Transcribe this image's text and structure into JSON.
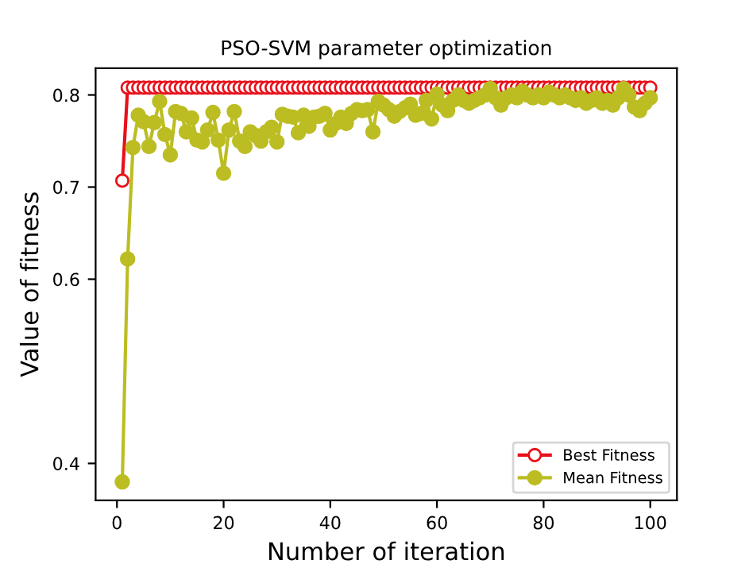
{
  "chart_data": {
    "type": "line",
    "title": "PSO-SVM parameter optimization",
    "xlabel": "Number of iteration",
    "ylabel": "Value of fitness",
    "x": [
      1,
      2,
      3,
      4,
      5,
      6,
      7,
      8,
      9,
      10,
      11,
      12,
      13,
      14,
      15,
      16,
      17,
      18,
      19,
      20,
      21,
      22,
      23,
      24,
      25,
      26,
      27,
      28,
      29,
      30,
      31,
      32,
      33,
      34,
      35,
      36,
      37,
      38,
      39,
      40,
      41,
      42,
      43,
      44,
      45,
      46,
      47,
      48,
      49,
      50,
      51,
      52,
      53,
      54,
      55,
      56,
      57,
      58,
      59,
      60,
      61,
      62,
      63,
      64,
      65,
      66,
      67,
      68,
      69,
      70,
      71,
      72,
      73,
      74,
      75,
      76,
      77,
      78,
      79,
      80,
      81,
      82,
      83,
      84,
      85,
      86,
      87,
      88,
      89,
      90,
      91,
      92,
      93,
      94,
      95,
      96,
      97,
      98,
      99,
      100
    ],
    "series": [
      {
        "name": "Best Fitness",
        "color": "#e8101a",
        "marker": "open circle",
        "values": [
          0.707,
          0.808,
          0.808,
          0.808,
          0.808,
          0.808,
          0.808,
          0.808,
          0.808,
          0.808,
          0.808,
          0.808,
          0.808,
          0.808,
          0.808,
          0.808,
          0.808,
          0.808,
          0.808,
          0.808,
          0.808,
          0.808,
          0.808,
          0.808,
          0.808,
          0.808,
          0.808,
          0.808,
          0.808,
          0.808,
          0.808,
          0.808,
          0.808,
          0.808,
          0.808,
          0.808,
          0.808,
          0.808,
          0.808,
          0.808,
          0.808,
          0.808,
          0.808,
          0.808,
          0.808,
          0.808,
          0.808,
          0.808,
          0.808,
          0.808,
          0.808,
          0.808,
          0.808,
          0.808,
          0.808,
          0.808,
          0.808,
          0.808,
          0.808,
          0.808,
          0.808,
          0.808,
          0.808,
          0.808,
          0.808,
          0.808,
          0.808,
          0.808,
          0.808,
          0.808,
          0.808,
          0.808,
          0.808,
          0.808,
          0.808,
          0.808,
          0.808,
          0.808,
          0.808,
          0.808,
          0.808,
          0.808,
          0.808,
          0.808,
          0.808,
          0.808,
          0.808,
          0.808,
          0.808,
          0.808,
          0.808,
          0.808,
          0.808,
          0.808,
          0.808,
          0.808,
          0.808,
          0.808,
          0.808,
          0.808
        ]
      },
      {
        "name": "Mean Fitness",
        "color": "#bcbd22",
        "marker": "circle",
        "values": [
          0.38,
          0.622,
          0.743,
          0.778,
          0.771,
          0.744,
          0.77,
          0.793,
          0.757,
          0.735,
          0.782,
          0.78,
          0.76,
          0.775,
          0.751,
          0.749,
          0.762,
          0.781,
          0.751,
          0.715,
          0.762,
          0.782,
          0.75,
          0.744,
          0.76,
          0.756,
          0.75,
          0.76,
          0.765,
          0.749,
          0.779,
          0.777,
          0.776,
          0.759,
          0.778,
          0.766,
          0.776,
          0.777,
          0.78,
          0.762,
          0.769,
          0.776,
          0.769,
          0.78,
          0.784,
          0.783,
          0.784,
          0.76,
          0.793,
          0.789,
          0.784,
          0.777,
          0.782,
          0.786,
          0.79,
          0.778,
          0.78,
          0.794,
          0.774,
          0.801,
          0.789,
          0.783,
          0.794,
          0.8,
          0.794,
          0.791,
          0.794,
          0.797,
          0.8,
          0.807,
          0.797,
          0.789,
          0.797,
          0.8,
          0.797,
          0.804,
          0.8,
          0.797,
          0.8,
          0.797,
          0.803,
          0.8,
          0.797,
          0.8,
          0.797,
          0.794,
          0.797,
          0.791,
          0.794,
          0.797,
          0.791,
          0.794,
          0.789,
          0.797,
          0.807,
          0.8,
          0.787,
          0.783,
          0.791,
          0.797
        ]
      }
    ],
    "xlim": [
      -4,
      105
    ],
    "ylim": [
      0.36,
      0.829
    ],
    "xticks": [
      0,
      20,
      40,
      60,
      80,
      100
    ],
    "yticks": [
      0.4,
      0.6,
      0.7,
      0.8
    ],
    "legend": "bottom right",
    "grid": false,
    "line_style": "solid"
  }
}
